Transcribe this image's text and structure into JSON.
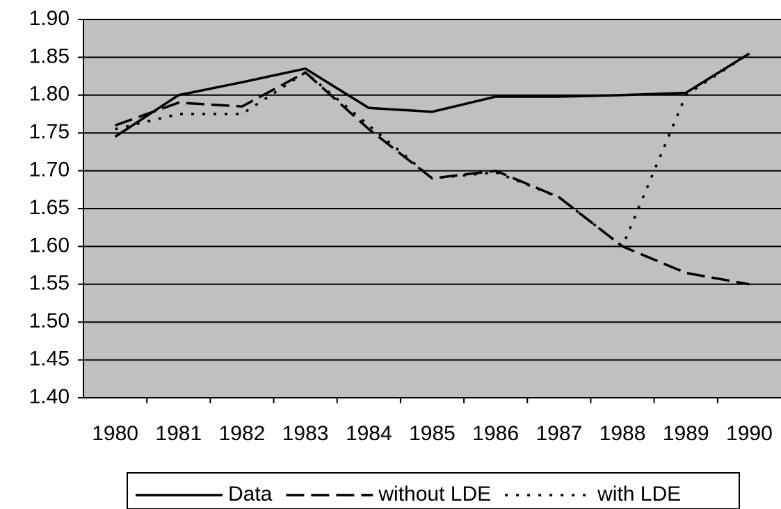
{
  "chart_data": {
    "type": "line",
    "categories": [
      "1980",
      "1981",
      "1982",
      "1983",
      "1984",
      "1985",
      "1986",
      "1987",
      "1988",
      "1989",
      "1990"
    ],
    "series": [
      {
        "name": "Data",
        "color": "#000000",
        "dash": "solid",
        "values": [
          1.745,
          1.8,
          1.817,
          1.835,
          1.783,
          1.778,
          1.798,
          1.798,
          1.8,
          1.803,
          1.855
        ]
      },
      {
        "name": "without LDE",
        "color": "#000000",
        "dash": "dashed",
        "values": [
          1.76,
          1.79,
          1.785,
          1.83,
          1.755,
          1.69,
          1.7,
          1.665,
          1.6,
          1.565,
          1.55
        ]
      },
      {
        "name": "with LDE",
        "color": "#000000",
        "dash": "dotted",
        "values": [
          1.755,
          1.775,
          1.775,
          1.83,
          1.76,
          1.69,
          1.698,
          1.665,
          1.6,
          1.8,
          1.855
        ]
      }
    ],
    "ylim": [
      1.4,
      1.9
    ],
    "yticks": [
      {
        "value": 1.4,
        "label": "1.40"
      },
      1.45,
      {
        "value": 1.5,
        "label": "1.50"
      },
      1.55,
      {
        "value": 1.6,
        "label": "1.60"
      },
      1.65,
      {
        "value": 1.7,
        "label": "1.70"
      },
      1.75,
      {
        "value": 1.8,
        "label": "1.80"
      },
      1.85,
      {
        "value": 1.9,
        "label": "1.90"
      }
    ],
    "grid": true,
    "plot_background": "#c0c0c0",
    "legend": "bottom"
  }
}
